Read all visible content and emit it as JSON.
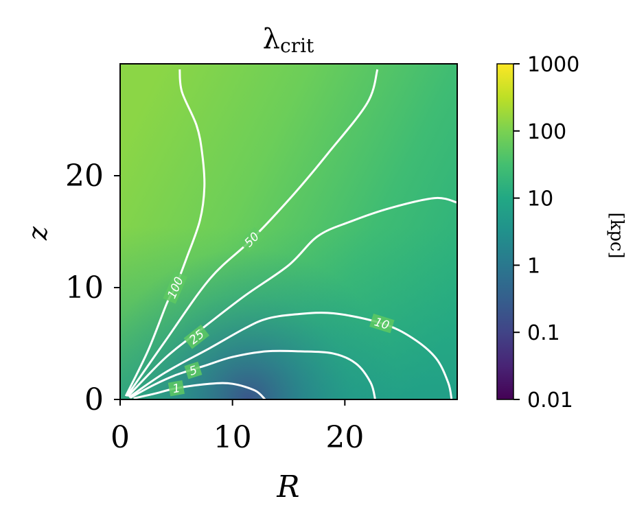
{
  "chart_data": {
    "type": "contour",
    "title": "λ",
    "title_subscript": "crit",
    "xlabel": "R",
    "ylabel": "z",
    "xlim": [
      0,
      30
    ],
    "ylim": [
      0,
      30
    ],
    "xticks": [
      0,
      10,
      20
    ],
    "yticks": [
      0,
      10,
      20
    ],
    "xtick_labels": [
      "0",
      "10",
      "20"
    ],
    "ytick_labels": [
      "0",
      "10",
      "20"
    ],
    "scale": "log",
    "colormap": "viridis",
    "colorbar": {
      "label": "[kpc]",
      "range": [
        0.01,
        1000
      ],
      "ticks": [
        0.01,
        0.1,
        1,
        10,
        100,
        1000
      ],
      "tick_labels": [
        "0.01",
        "0.1",
        "1",
        "10",
        "100",
        "1000"
      ]
    },
    "contour_color": "#ffffff",
    "contours": [
      {
        "level": 1,
        "label": "1",
        "label_at": [
          5,
          1
        ],
        "points": [
          [
            1.2,
            0.1
          ],
          [
            3,
            0.5
          ],
          [
            5,
            1.0
          ],
          [
            8,
            1.4
          ],
          [
            10,
            1.4
          ],
          [
            12,
            0.8
          ],
          [
            12.9,
            0
          ]
        ]
      },
      {
        "level": 5,
        "label": "5",
        "label_at": [
          6.5,
          2.6
        ],
        "points": [
          [
            0.9,
            0.15
          ],
          [
            3,
            1.3
          ],
          [
            5,
            2.2
          ],
          [
            7.5,
            3.0
          ],
          [
            10,
            3.8
          ],
          [
            13,
            4.3
          ],
          [
            16,
            4.3
          ],
          [
            19,
            4.1
          ],
          [
            21,
            3.2
          ],
          [
            22.3,
            1.5
          ],
          [
            22.7,
            0
          ]
        ]
      },
      {
        "level": 10,
        "label": "10",
        "label_at": [
          23.3,
          6.8
        ],
        "points": [
          [
            0.8,
            0.2
          ],
          [
            4,
            2.4
          ],
          [
            8,
            4.6
          ],
          [
            11,
            6.3
          ],
          [
            13,
            7.2
          ],
          [
            15.5,
            7.6
          ],
          [
            19,
            7.7
          ],
          [
            23.3,
            6.8
          ],
          [
            26,
            5.5
          ],
          [
            28.1,
            3.7
          ],
          [
            29.2,
            1.5
          ],
          [
            29.5,
            0
          ]
        ]
      },
      {
        "level": 25,
        "label": "25",
        "label_at": [
          6.8,
          5.6
        ],
        "points": [
          [
            0.7,
            0.3
          ],
          [
            4,
            3.7
          ],
          [
            7,
            6.1
          ],
          [
            11,
            9.2
          ],
          [
            15,
            12.0
          ],
          [
            17.6,
            14.6
          ],
          [
            20.5,
            15.9
          ],
          [
            24,
            17.1
          ],
          [
            28,
            18.0
          ],
          [
            30,
            17.6
          ]
        ]
      },
      {
        "level": 50,
        "label": "50",
        "label_at": [
          11.7,
          14.3
        ],
        "points": [
          [
            0.6,
            0.3
          ],
          [
            4,
            5.2
          ],
          [
            8,
            10.8
          ],
          [
            11.7,
            14.3
          ],
          [
            15.5,
            18.4
          ],
          [
            18.5,
            22.0
          ],
          [
            22,
            26.5
          ],
          [
            22.9,
            29.5
          ]
        ]
      },
      {
        "level": 100,
        "label": "100",
        "label_at": [
          4.9,
          10.0
        ],
        "points": [
          [
            0.5,
            0.3
          ],
          [
            2.5,
            4.4
          ],
          [
            4.2,
            8.7
          ],
          [
            4.9,
            10.0
          ],
          [
            5.9,
            12.6
          ],
          [
            7.1,
            16.0
          ],
          [
            7.5,
            19.0
          ],
          [
            7.3,
            22.0
          ],
          [
            6.8,
            24.5
          ],
          [
            5.5,
            27.5
          ],
          [
            5.3,
            29.5
          ]
        ]
      }
    ]
  }
}
